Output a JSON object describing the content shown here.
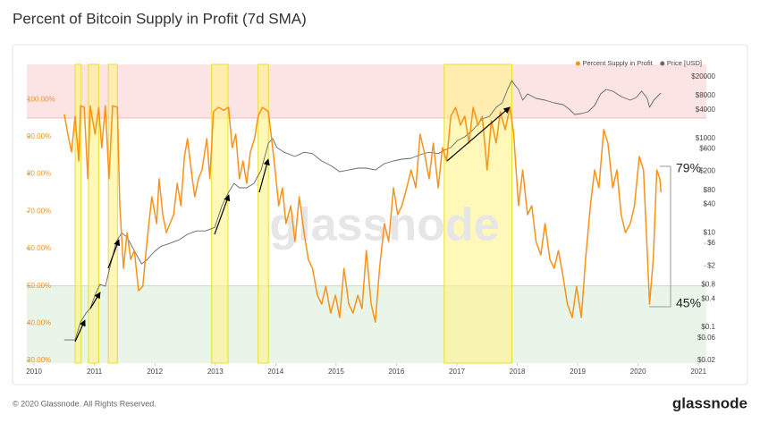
{
  "chart_data": {
    "type": "line",
    "title": "Percent of Bitcoin Supply in Profit (7d SMA)",
    "watermark": "glassnode",
    "footer": {
      "copyright": "© 2020 Glassnode. All Rights Reserved.",
      "brand": "glassnode"
    },
    "annotations": [
      "79%",
      "45%"
    ],
    "legend": "upper right",
    "grid": false,
    "xlim": [
      2009.88,
      2021.13
    ],
    "xticks": [
      2010,
      2011,
      2012,
      2013,
      2014,
      2015,
      2016,
      2017,
      2018,
      2019,
      2020,
      2021
    ],
    "ylim": [
      29.3,
      109.4
    ],
    "yticks": [
      {
        "value": 30,
        "label": "30.00%"
      },
      {
        "value": 40,
        "label": "40.00%"
      },
      {
        "value": 50,
        "label": "50.00%"
      },
      {
        "value": 60,
        "label": "60.00%"
      },
      {
        "value": 70,
        "label": "70.00%"
      },
      {
        "value": 80,
        "label": "80.00%"
      },
      {
        "value": 90,
        "label": "90.00%"
      },
      {
        "value": 100,
        "label": "100.00%"
      }
    ],
    "y2log": true,
    "y2lim": [
      0.0175,
      36800
    ],
    "y2ticks": [
      {
        "value": 20000,
        "label": "$20000"
      },
      {
        "value": 8000,
        "label": "$8000"
      },
      {
        "value": 4000,
        "label": "$4000"
      },
      {
        "value": 1000,
        "label": "$1000"
      },
      {
        "value": 600,
        "label": "$600"
      },
      {
        "value": 200,
        "label": "$200"
      },
      {
        "value": 80,
        "label": "$80"
      },
      {
        "value": 40,
        "label": "$40"
      },
      {
        "value": 10,
        "label": "$10"
      },
      {
        "value": 6,
        "label": "$6"
      },
      {
        "value": 2,
        "label": "$2"
      },
      {
        "value": 0.8,
        "label": "$0.8"
      },
      {
        "value": 0.4,
        "label": "$0.4"
      },
      {
        "value": 0.1,
        "label": "$0.1"
      },
      {
        "value": 0.06,
        "label": "$0.06"
      },
      {
        "value": 0.02,
        "label": "$0.02"
      }
    ],
    "zones": [
      {
        "from": 95,
        "color": "#fde4e4",
        "line": "#f6b8b8"
      },
      {
        "to": 50,
        "color": "#e9f5e9",
        "line": "#bfe0bf"
      }
    ],
    "highlights": {
      "color": "#fff48a",
      "border": "#e8df2a",
      "ranges": [
        [
          2010.68,
          2010.78
        ],
        [
          2010.9,
          2011.07
        ],
        [
          2011.23,
          2011.38
        ],
        [
          2012.94,
          2013.21
        ],
        [
          2013.71,
          2013.88
        ],
        [
          2016.79,
          2017.91
        ]
      ]
    },
    "series": [
      {
        "name": "Percent Supply in Profit",
        "color": "#f7931a",
        "x": [
          2010.5,
          2010.56,
          2010.62,
          2010.68,
          2010.74,
          2010.77,
          2010.83,
          2010.89,
          2010.93,
          2011.01,
          2011.07,
          2011.12,
          2011.18,
          2011.24,
          2011.3,
          2011.38,
          2011.42,
          2011.48,
          2011.54,
          2011.6,
          2011.66,
          2011.73,
          2011.8,
          2011.87,
          2011.95,
          2012.03,
          2012.07,
          2012.13,
          2012.19,
          2012.25,
          2012.31,
          2012.37,
          2012.43,
          2012.49,
          2012.54,
          2012.6,
          2012.66,
          2012.72,
          2012.78,
          2012.86,
          2012.91,
          2012.97,
          2013.05,
          2013.14,
          2013.22,
          2013.28,
          2013.34,
          2013.4,
          2013.46,
          2013.52,
          2013.58,
          2013.65,
          2013.71,
          2013.78,
          2013.88,
          2013.94,
          2013.99,
          2014.05,
          2014.11,
          2014.17,
          2014.25,
          2014.32,
          2014.39,
          2014.47,
          2014.54,
          2014.61,
          2014.69,
          2014.76,
          2014.83,
          2014.91,
          2014.99,
          2015.06,
          2015.13,
          2015.21,
          2015.28,
          2015.36,
          2015.43,
          2015.5,
          2015.58,
          2015.65,
          2015.72,
          2015.8,
          2015.87,
          2015.95,
          2016.02,
          2016.09,
          2016.17,
          2016.24,
          2016.32,
          2016.39,
          2016.46,
          2016.54,
          2016.61,
          2016.69,
          2016.76,
          2016.83,
          2016.9,
          2016.98,
          2017.06,
          2017.13,
          2017.2,
          2017.27,
          2017.35,
          2017.42,
          2017.5,
          2017.57,
          2017.65,
          2017.72,
          2017.8,
          2017.88,
          2017.94,
          2018.02,
          2018.09,
          2018.17,
          2018.24,
          2018.31,
          2018.39,
          2018.46,
          2018.54,
          2018.61,
          2018.68,
          2018.76,
          2018.83,
          2018.91,
          2018.98,
          2019.06,
          2019.13,
          2019.21,
          2019.28,
          2019.35,
          2019.43,
          2019.5,
          2019.58,
          2019.65,
          2019.72,
          2019.79,
          2019.87,
          2019.94,
          2020.02,
          2020.09,
          2020.15,
          2020.19,
          2020.25,
          2020.31,
          2020.36,
          2020.38
        ],
        "values": [
          96,
          90.7,
          85.9,
          95.5,
          83.5,
          98.3,
          97.9,
          78.7,
          98.3,
          90.7,
          97.9,
          87,
          98.3,
          78.7,
          98.3,
          97.9,
          71.5,
          54.7,
          64.3,
          57.1,
          59.5,
          48.7,
          49.9,
          61.9,
          73.9,
          66.7,
          78.7,
          69.1,
          64.3,
          66.7,
          69.1,
          77.5,
          71.5,
          84.7,
          89.5,
          81.1,
          73.9,
          78.7,
          81.1,
          89.5,
          78.7,
          96.7,
          97.9,
          97.1,
          97.9,
          87.1,
          90.7,
          78.7,
          83.5,
          77.5,
          85.9,
          89.5,
          95.5,
          97.9,
          96.7,
          88.3,
          81.1,
          71.5,
          76.3,
          66.7,
          71.5,
          61.9,
          73.9,
          64.3,
          57.1,
          54.7,
          47.5,
          45.1,
          49.9,
          42.7,
          47.5,
          41.5,
          54.7,
          45.1,
          42.7,
          47.5,
          43.9,
          59.5,
          45.1,
          40.3,
          54.7,
          66.7,
          61.9,
          76.3,
          69.1,
          71.5,
          76.3,
          81.1,
          76.3,
          90.7,
          85.9,
          78.7,
          88.3,
          76.3,
          87.1,
          83.5,
          95.5,
          97.9,
          93.1,
          95.5,
          88.3,
          97.9,
          93.1,
          95.5,
          81.1,
          94.3,
          88.3,
          96.7,
          91.9,
          97.9,
          90.7,
          71.5,
          81.1,
          69.1,
          71.5,
          61.9,
          58.3,
          66.7,
          57.1,
          54.7,
          59.5,
          52.3,
          45.1,
          41.5,
          49.9,
          41.5,
          57.1,
          71.5,
          81.1,
          76.3,
          91.9,
          88.3,
          76.3,
          81.1,
          69.1,
          64.3,
          66.7,
          71.5,
          84.7,
          81.1,
          59.5,
          45.1,
          57.1,
          81.1,
          78.7,
          75.1
        ]
      },
      {
        "name": "Price [USD]",
        "color": "#666666",
        "axis": "y2",
        "x": [
          2010.5,
          2010.68,
          2010.77,
          2010.86,
          2010.93,
          2011.01,
          2011.09,
          2011.18,
          2011.27,
          2011.36,
          2011.45,
          2011.54,
          2011.66,
          2011.78,
          2011.87,
          2011.98,
          2012.1,
          2012.25,
          2012.4,
          2012.54,
          2012.69,
          2012.84,
          2012.99,
          2013.11,
          2013.22,
          2013.31,
          2013.4,
          2013.52,
          2013.64,
          2013.76,
          2013.88,
          2013.95,
          2014.02,
          2014.14,
          2014.32,
          2014.47,
          2014.61,
          2014.76,
          2014.91,
          2015.06,
          2015.21,
          2015.36,
          2015.5,
          2015.65,
          2015.8,
          2015.95,
          2016.09,
          2016.24,
          2016.39,
          2016.54,
          2016.69,
          2016.79,
          2016.9,
          2017.01,
          2017.13,
          2017.27,
          2017.42,
          2017.54,
          2017.65,
          2017.75,
          2017.84,
          2017.91,
          2017.96,
          2018.02,
          2018.09,
          2018.17,
          2018.31,
          2018.46,
          2018.61,
          2018.76,
          2018.86,
          2018.95,
          2019.06,
          2019.17,
          2019.28,
          2019.38,
          2019.47,
          2019.58,
          2019.72,
          2019.87,
          2019.97,
          2020.06,
          2020.15,
          2020.19,
          2020.26,
          2020.36,
          2020.38
        ],
        "values": [
          0.054,
          0.054,
          0.13,
          0.2,
          0.25,
          0.48,
          0.81,
          0.74,
          2.2,
          6.5,
          10,
          8.1,
          4.2,
          2.2,
          2.7,
          3.9,
          5.2,
          6,
          7.1,
          9.3,
          11,
          11,
          13,
          37,
          72,
          111,
          90,
          90,
          111,
          214,
          790,
          990,
          640,
          510,
          413,
          510,
          475,
          332,
          267,
          197,
          214,
          234,
          234,
          214,
          291,
          332,
          362,
          378,
          451,
          510,
          475,
          560,
          640,
          900,
          1077,
          1527,
          2577,
          2940,
          4540,
          5650,
          10860,
          16800,
          13500,
          10860,
          6440,
          8730,
          7020,
          6440,
          5650,
          5180,
          4160,
          3200,
          3350,
          3650,
          4950,
          8730,
          10860,
          10000,
          7650,
          6440,
          7330,
          10000,
          7020,
          4540,
          6440,
          8730,
          9000
        ]
      }
    ]
  }
}
